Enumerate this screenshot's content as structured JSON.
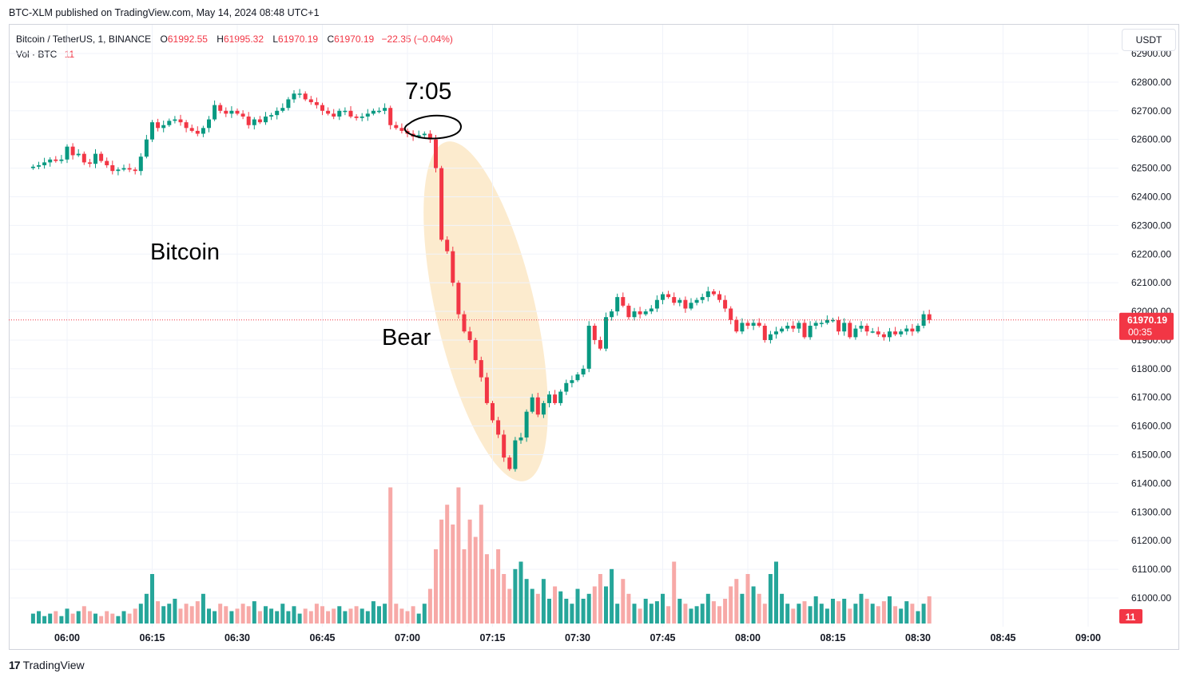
{
  "header": {
    "published": "BTC-XLM published on TradingView.com, May 14, 2024 08:48 UTC+1"
  },
  "legend": {
    "symbol": "Bitcoin / TetherUS, 1, BINANCE",
    "o_label": "O",
    "o_value": "61992.55",
    "h_label": "H",
    "h_value": "61995.32",
    "l_label": "L",
    "l_value": "61970.19",
    "c_label": "C",
    "c_value": "61970.19",
    "change": "−22.35 (−0.04%)",
    "vol_label": "Vol · BTC",
    "vol_value": "11"
  },
  "currency_button": "USDT",
  "annotations": {
    "time_note": "7:05",
    "asset_note": "Bitcoin",
    "trend_note": "Bear"
  },
  "footer": {
    "brand": "TradingView",
    "logo_text": "17"
  },
  "colors": {
    "up": "#089981",
    "down": "#f23645",
    "volUp": "#26a69a",
    "volDown": "#f7a9a7",
    "highlight": "#fbe7c6"
  },
  "chart_data": {
    "type": "candlestick",
    "interval": "1 minute",
    "y_ticks": [
      "62900.00",
      "62800.00",
      "62700.00",
      "62600.00",
      "62500.00",
      "62400.00",
      "62300.00",
      "62200.00",
      "62100.00",
      "62000.00",
      "61900.00",
      "61800.00",
      "61700.00",
      "61600.00",
      "61500.00",
      "61400.00",
      "61300.00",
      "61200.00",
      "61100.00",
      "61000.00"
    ],
    "x_ticks": [
      "06:00",
      "06:15",
      "06:30",
      "06:45",
      "07:00",
      "07:15",
      "07:30",
      "07:45",
      "08:00",
      "08:15",
      "08:30",
      "08:45",
      "09:00"
    ],
    "last_price": "61970.19",
    "countdown": "00:35",
    "last_volume": "11",
    "closes_per_minute_from_05_54": [
      62505,
      62510,
      62520,
      62530,
      62525,
      62530,
      62575,
      62545,
      62550,
      62520,
      62515,
      62550,
      62525,
      62510,
      62490,
      62495,
      62500,
      62495,
      62490,
      62540,
      62600,
      62660,
      62640,
      62650,
      62665,
      62670,
      62660,
      62640,
      62630,
      62620,
      62640,
      62670,
      62720,
      62700,
      62690,
      62700,
      62690,
      62680,
      62650,
      62670,
      62660,
      62680,
      62685,
      62700,
      62710,
      62740,
      62760,
      62760,
      62740,
      62730,
      62720,
      62700,
      62690,
      62680,
      62700,
      62700,
      62680,
      62675,
      62680,
      62690,
      62700,
      62700,
      62710,
      62650,
      62640,
      62630,
      62620,
      62610,
      62615,
      62620,
      62600,
      62500,
      62250,
      62210,
      62100,
      61990,
      61930,
      61900,
      61830,
      61770,
      61680,
      61620,
      61570,
      61490,
      61450,
      61550,
      61560,
      61650,
      61700,
      61640,
      61680,
      61710,
      61680,
      61720,
      61750,
      61760,
      61780,
      61800,
      61950,
      61900,
      61870,
      61980,
      62000,
      62050,
      62020,
      61980,
      62000,
      61990,
      62000,
      62010,
      62040,
      62060,
      62050,
      62030,
      62040,
      62010,
      62030,
      62040,
      62050,
      62070,
      62060,
      62040,
      62010,
      61970,
      61930,
      61960,
      61950,
      61960,
      61950,
      61900,
      61920,
      61930,
      61940,
      61950,
      61940,
      61960,
      61910,
      61950,
      61960,
      61960,
      61970,
      61970,
      61930,
      61960,
      61910,
      61940,
      61950,
      61930,
      61930,
      61920,
      61910,
      61930,
      61920,
      61930,
      61940,
      61930,
      61950,
      61990,
      61970
    ],
    "volumes_per_minute_from_05_54": [
      4,
      5,
      3,
      4,
      5,
      3,
      6,
      4,
      5,
      7,
      5,
      4,
      3,
      5,
      4,
      3,
      5,
      4,
      6,
      8,
      12,
      20,
      9,
      7,
      8,
      10,
      6,
      8,
      7,
      9,
      12,
      6,
      5,
      8,
      7,
      5,
      6,
      8,
      7,
      9,
      5,
      7,
      6,
      5,
      8,
      5,
      7,
      4,
      6,
      5,
      8,
      7,
      5,
      6,
      7,
      5,
      6,
      7,
      6,
      5,
      9,
      7,
      8,
      55,
      8,
      6,
      5,
      7,
      4,
      8,
      14,
      30,
      42,
      48,
      40,
      55,
      30,
      42,
      35,
      48,
      28,
      22,
      30,
      20,
      14,
      22,
      25,
      18,
      14,
      12,
      18,
      10,
      15,
      13,
      10,
      8,
      14,
      10,
      12,
      15,
      20,
      15,
      22,
      8,
      18,
      12,
      8,
      6,
      10,
      8,
      9,
      12,
      7,
      25,
      10,
      8,
      6,
      7,
      8,
      12,
      9,
      7,
      10,
      15,
      18,
      12,
      20,
      15,
      12,
      8,
      20,
      25,
      12,
      8,
      6,
      8,
      9,
      7,
      11,
      8,
      6,
      10,
      9,
      10,
      6,
      8,
      12,
      10,
      8,
      7,
      9,
      11,
      7,
      6,
      9,
      8,
      5,
      8,
      11
    ],
    "price_range": [
      60950,
      62900
    ]
  }
}
